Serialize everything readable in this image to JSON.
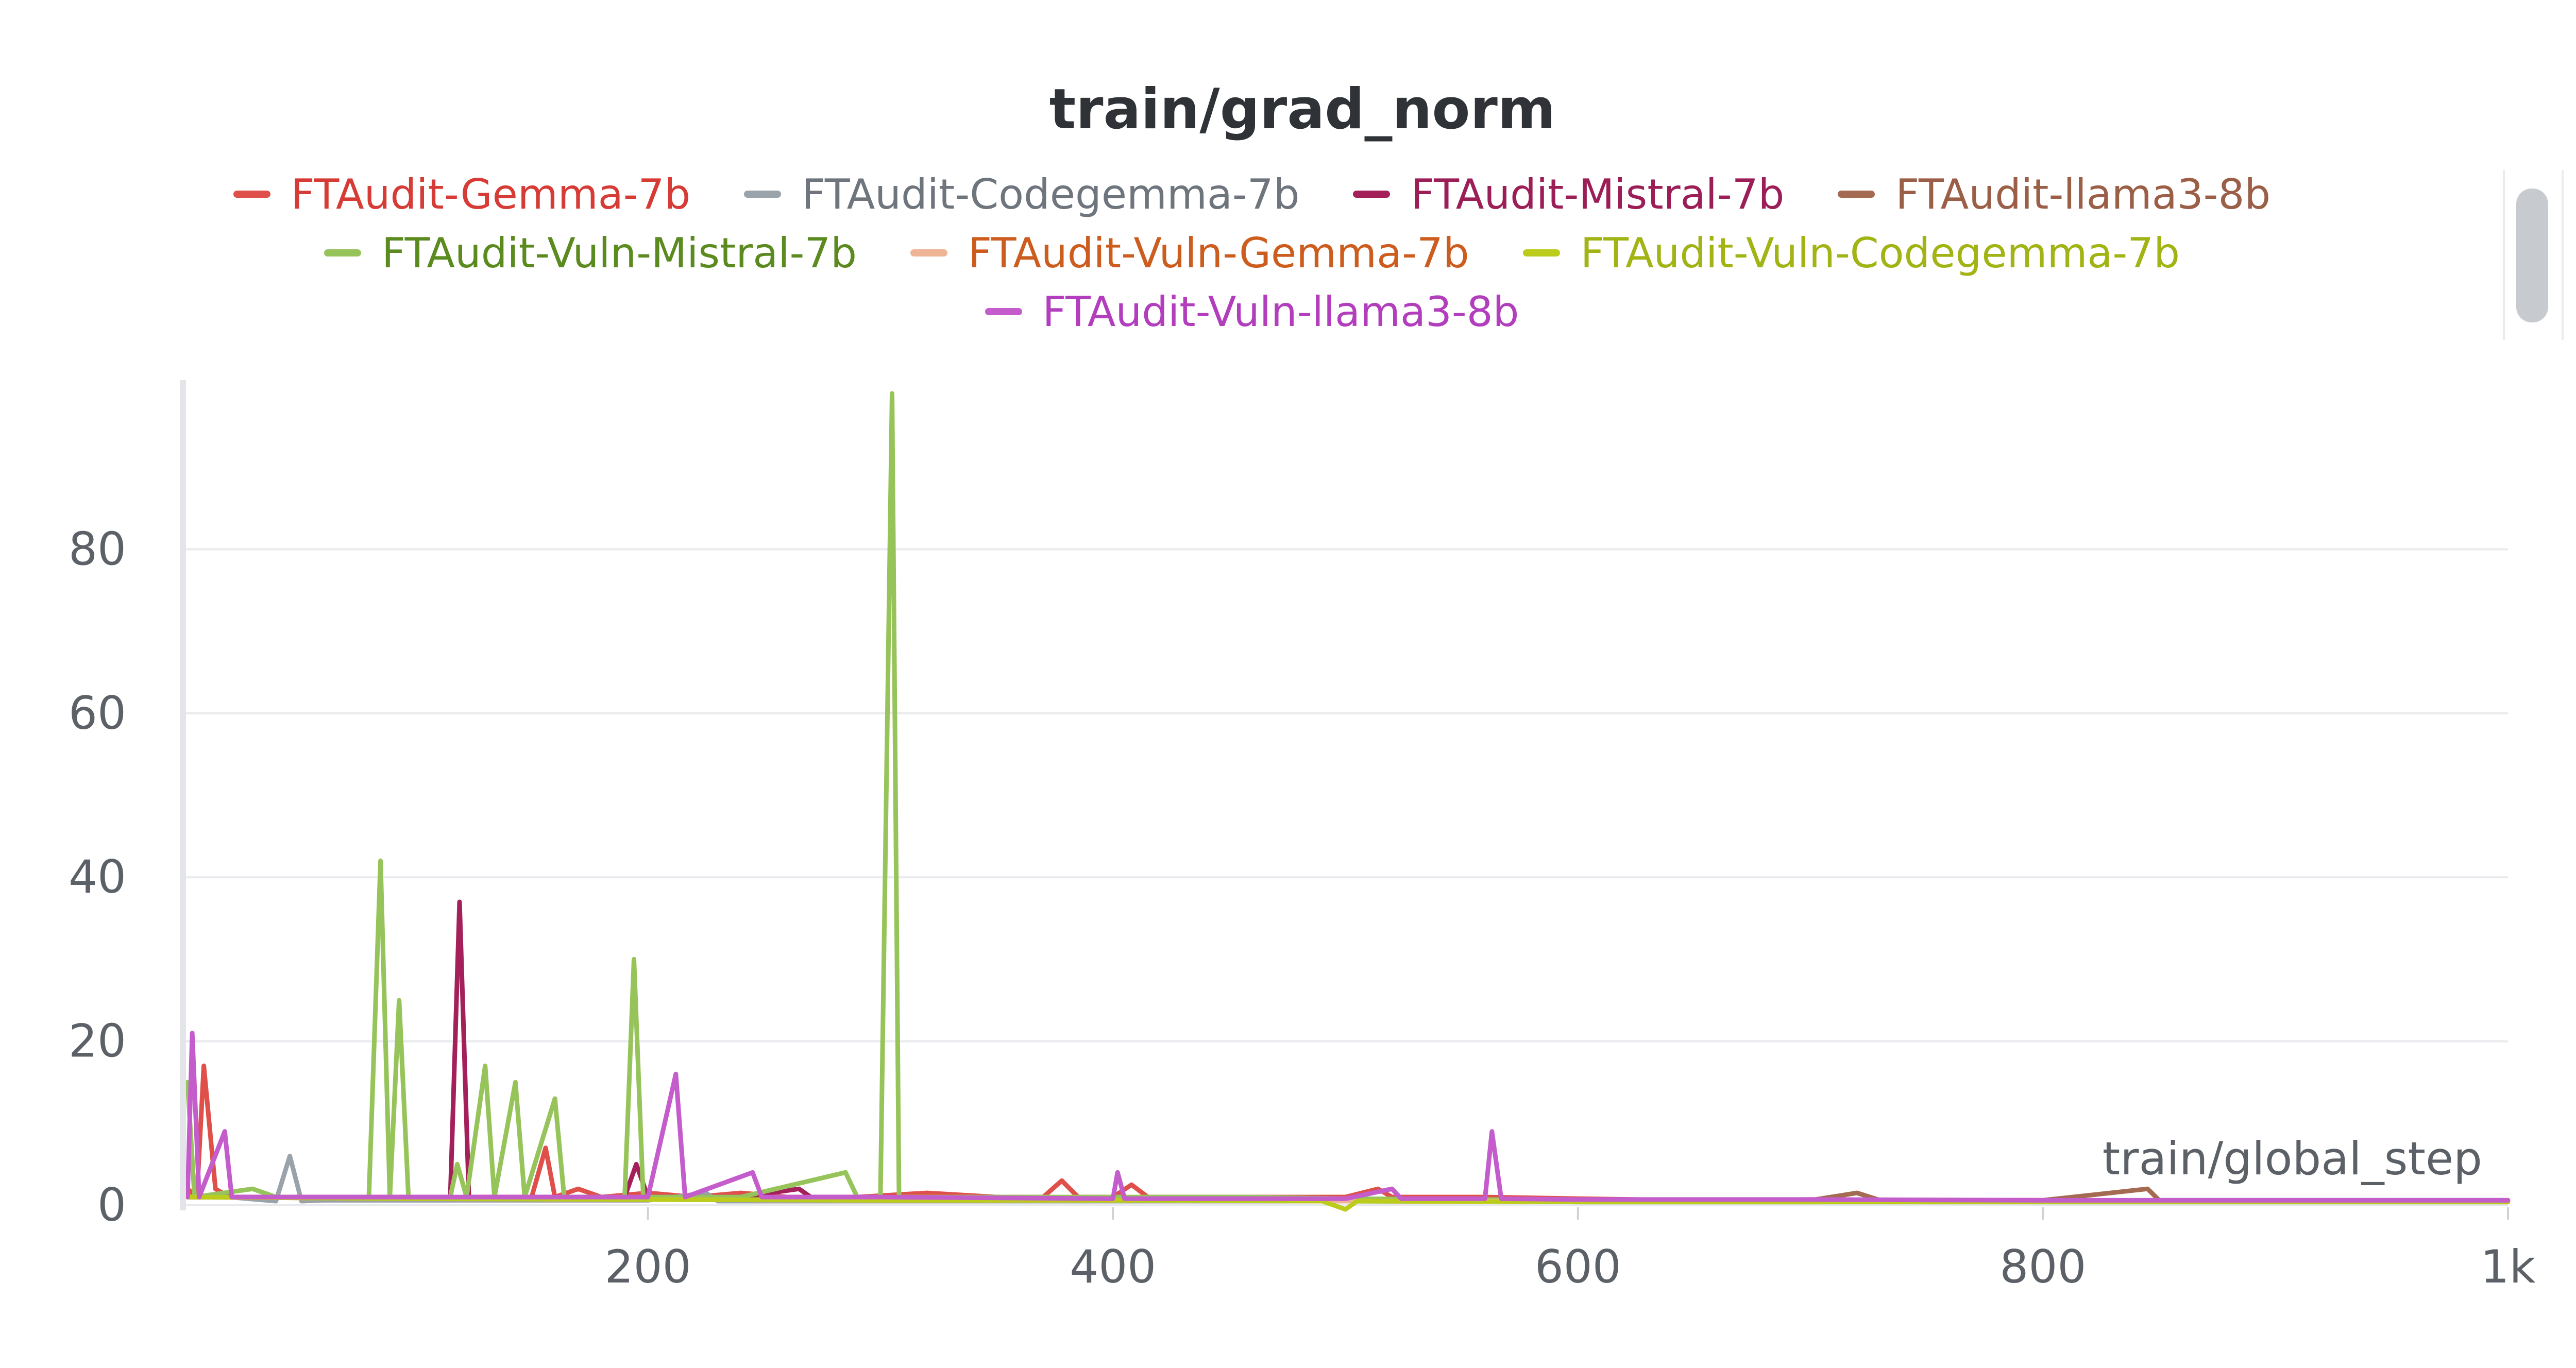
{
  "panel": {
    "title": "train/grad_norm"
  },
  "chart_data": {
    "type": "line",
    "title": "train/grad_norm",
    "xlabel": "train/global_step",
    "ylabel": "",
    "xlim": [
      0,
      1000
    ],
    "ylim": [
      0,
      100
    ],
    "grid": true,
    "legend_position": "top",
    "x_ticks": [
      200,
      400,
      600,
      800,
      1000
    ],
    "x_tick_labels": [
      "200",
      "400",
      "600",
      "800",
      "1k"
    ],
    "y_ticks": [
      0,
      20,
      40,
      60,
      80
    ],
    "y_tick_labels": [
      "0",
      "20",
      "40",
      "60",
      "80"
    ],
    "series": [
      {
        "name": "FTAudit-Gemma-7b",
        "color": "#e0504a",
        "legend_color": "#d63b35",
        "points": [
          [
            2,
            2
          ],
          [
            6,
            1
          ],
          [
            9,
            17
          ],
          [
            14,
            2
          ],
          [
            20,
            1
          ],
          [
            30,
            1
          ],
          [
            50,
            1
          ],
          [
            70,
            0.8
          ],
          [
            90,
            1
          ],
          [
            110,
            0.8
          ],
          [
            130,
            1
          ],
          [
            150,
            1
          ],
          [
            156,
            7
          ],
          [
            160,
            1
          ],
          [
            170,
            2
          ],
          [
            180,
            1
          ],
          [
            200,
            1.5
          ],
          [
            220,
            1
          ],
          [
            240,
            1.5
          ],
          [
            260,
            1
          ],
          [
            290,
            1
          ],
          [
            320,
            1.5
          ],
          [
            350,
            1
          ],
          [
            370,
            1
          ],
          [
            378,
            3
          ],
          [
            385,
            1
          ],
          [
            400,
            1
          ],
          [
            408,
            2.5
          ],
          [
            415,
            1
          ],
          [
            450,
            1
          ],
          [
            500,
            1
          ],
          [
            514,
            2
          ],
          [
            520,
            1
          ],
          [
            560,
            1
          ],
          [
            600,
            0.8
          ],
          [
            650,
            0.6
          ],
          [
            700,
            0.7
          ],
          [
            750,
            0.6
          ],
          [
            800,
            0.6
          ],
          [
            850,
            0.5
          ],
          [
            900,
            0.5
          ],
          [
            950,
            0.5
          ],
          [
            1000,
            0.5
          ]
        ]
      },
      {
        "name": "FTAudit-Codegemma-7b",
        "color": "#9aa2aa",
        "legend_color": "#6e757c",
        "points": [
          [
            2,
            1
          ],
          [
            20,
            1
          ],
          [
            40,
            0.5
          ],
          [
            46,
            6
          ],
          [
            51,
            0.5
          ],
          [
            60,
            0.6
          ],
          [
            100,
            0.6
          ],
          [
            200,
            0.6
          ],
          [
            225,
            1.5
          ],
          [
            230,
            0.5
          ],
          [
            300,
            0.5
          ],
          [
            400,
            0.5
          ],
          [
            500,
            0.5
          ],
          [
            600,
            0.4
          ],
          [
            700,
            0.4
          ],
          [
            800,
            0.4
          ],
          [
            900,
            0.4
          ],
          [
            1000,
            0.4
          ]
        ]
      },
      {
        "name": "FTAudit-Mistral-7b",
        "color": "#a3205a",
        "legend_color": "#9c1e57",
        "points": [
          [
            2,
            1
          ],
          [
            30,
            1
          ],
          [
            60,
            1
          ],
          [
            100,
            1
          ],
          [
            115,
            1
          ],
          [
            119,
            37
          ],
          [
            123,
            1
          ],
          [
            150,
            1
          ],
          [
            190,
            1
          ],
          [
            195,
            5
          ],
          [
            200,
            1
          ],
          [
            240,
            1
          ],
          [
            265,
            2
          ],
          [
            270,
            1
          ],
          [
            300,
            1
          ],
          [
            400,
            0.8
          ],
          [
            500,
            0.6
          ],
          [
            600,
            0.5
          ],
          [
            700,
            0.5
          ],
          [
            800,
            0.5
          ],
          [
            900,
            0.5
          ],
          [
            1000,
            0.5
          ]
        ]
      },
      {
        "name": "FTAudit-llama3-8b",
        "color": "#a56a52",
        "legend_color": "#9b5f48",
        "points": [
          [
            2,
            1
          ],
          [
            100,
            0.8
          ],
          [
            200,
            0.8
          ],
          [
            300,
            0.7
          ],
          [
            400,
            0.7
          ],
          [
            500,
            0.6
          ],
          [
            600,
            0.6
          ],
          [
            700,
            0.6
          ],
          [
            720,
            1.5
          ],
          [
            730,
            0.6
          ],
          [
            800,
            0.6
          ],
          [
            845,
            2
          ],
          [
            850,
            0.6
          ],
          [
            900,
            0.6
          ],
          [
            1000,
            0.6
          ]
        ]
      },
      {
        "name": "FTAudit-Vuln-Mistral-7b",
        "color": "#96c45a",
        "legend_color": "#5b8a1f",
        "points": [
          [
            2,
            15
          ],
          [
            5,
            1
          ],
          [
            30,
            2
          ],
          [
            40,
            1
          ],
          [
            60,
            1
          ],
          [
            80,
            1
          ],
          [
            85,
            42
          ],
          [
            89,
            1
          ],
          [
            93,
            25
          ],
          [
            97,
            1
          ],
          [
            115,
            1
          ],
          [
            118,
            5
          ],
          [
            122,
            1
          ],
          [
            130,
            17
          ],
          [
            134,
            1
          ],
          [
            143,
            15
          ],
          [
            147,
            1
          ],
          [
            160,
            13
          ],
          [
            164,
            1
          ],
          [
            190,
            1
          ],
          [
            194,
            30
          ],
          [
            198,
            1
          ],
          [
            240,
            1
          ],
          [
            285,
            4
          ],
          [
            290,
            1
          ],
          [
            300,
            1
          ],
          [
            305,
            99
          ],
          [
            308,
            1
          ],
          [
            330,
            1
          ],
          [
            400,
            1
          ],
          [
            460,
            1
          ],
          [
            500,
            0.8
          ],
          [
            600,
            0.6
          ],
          [
            700,
            0.6
          ],
          [
            800,
            0.5
          ],
          [
            900,
            0.5
          ],
          [
            1000,
            0.5
          ]
        ]
      },
      {
        "name": "FTAudit-Vuln-Gemma-7b",
        "color": "#eeb496",
        "legend_color": "#cc5d1f",
        "points": [
          [
            2,
            1
          ],
          [
            100,
            0.8
          ],
          [
            200,
            0.7
          ],
          [
            300,
            0.6
          ],
          [
            400,
            0.6
          ],
          [
            500,
            0.5
          ],
          [
            600,
            0.5
          ],
          [
            700,
            0.5
          ],
          [
            800,
            0.5
          ],
          [
            900,
            0.5
          ],
          [
            1000,
            0.5
          ]
        ]
      },
      {
        "name": "FTAudit-Vuln-Codegemma-7b",
        "color": "#bccc1c",
        "legend_color": "#a2b314",
        "points": [
          [
            2,
            1
          ],
          [
            100,
            0.8
          ],
          [
            200,
            0.7
          ],
          [
            300,
            0.6
          ],
          [
            400,
            0.6
          ],
          [
            490,
            0.5
          ],
          [
            500,
            -0.5
          ],
          [
            505,
            0.5
          ],
          [
            600,
            0.4
          ],
          [
            700,
            0.4
          ],
          [
            800,
            0.4
          ],
          [
            900,
            0.4
          ],
          [
            1000,
            0.4
          ]
        ]
      },
      {
        "name": "FTAudit-Vuln-llama3-8b",
        "color": "#c45ccc",
        "legend_color": "#b23dbd",
        "points": [
          [
            2,
            1
          ],
          [
            4,
            21
          ],
          [
            7,
            1
          ],
          [
            18,
            9
          ],
          [
            21,
            1
          ],
          [
            40,
            1
          ],
          [
            80,
            1
          ],
          [
            120,
            1
          ],
          [
            200,
            1
          ],
          [
            212,
            16
          ],
          [
            216,
            1
          ],
          [
            245,
            4
          ],
          [
            249,
            1
          ],
          [
            300,
            1
          ],
          [
            400,
            0.8
          ],
          [
            402,
            4
          ],
          [
            405,
            0.8
          ],
          [
            500,
            0.8
          ],
          [
            520,
            2
          ],
          [
            524,
            0.8
          ],
          [
            560,
            0.8
          ],
          [
            563,
            9
          ],
          [
            567,
            0.8
          ],
          [
            600,
            0.7
          ],
          [
            700,
            0.7
          ],
          [
            800,
            0.6
          ],
          [
            900,
            0.6
          ],
          [
            1000,
            0.6
          ]
        ]
      }
    ]
  }
}
